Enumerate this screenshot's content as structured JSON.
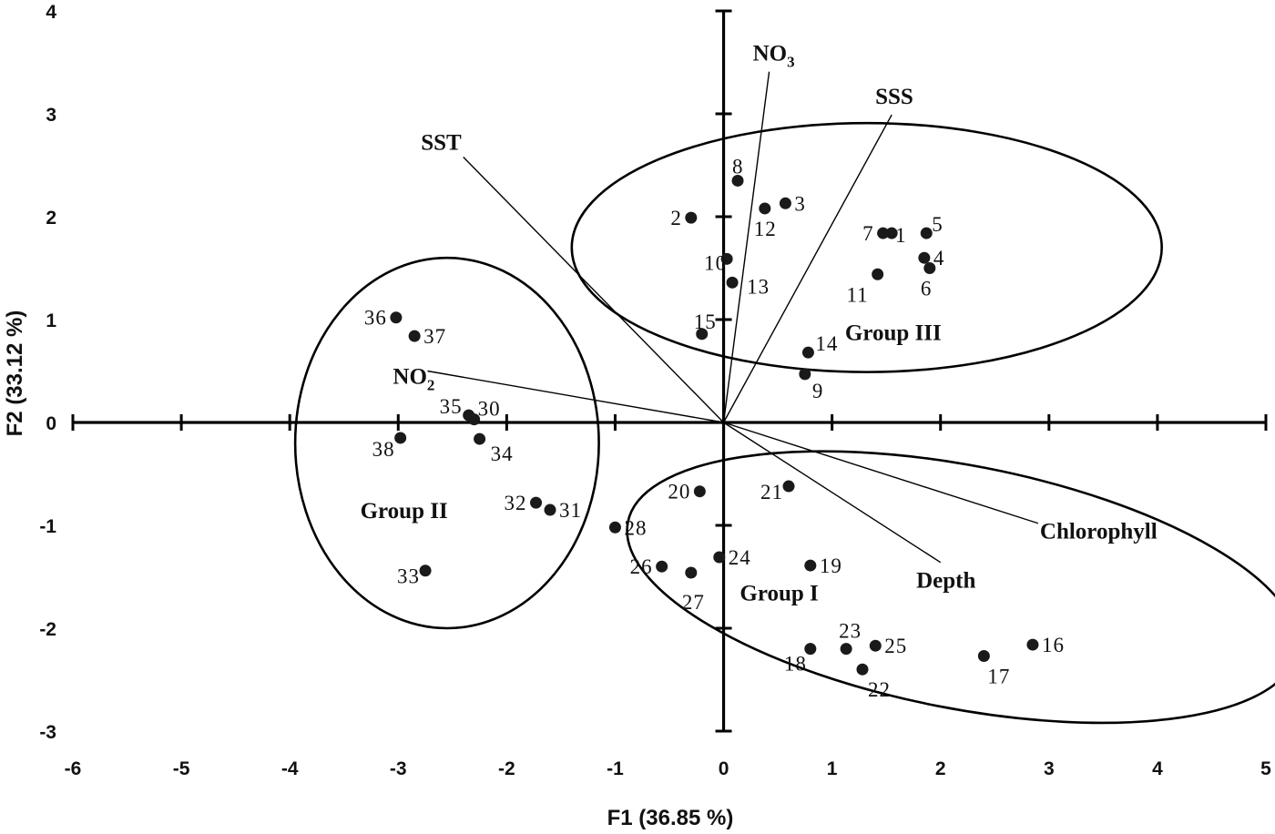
{
  "chart_data": {
    "type": "scatter",
    "title": "",
    "xlabel": "F1 (36.85 %)",
    "ylabel": "F2 (33.12 %)",
    "xlim": [
      -6,
      5
    ],
    "ylim": [
      -3,
      4
    ],
    "xticks": [
      -6,
      -5,
      -4,
      -3,
      -2,
      -1,
      0,
      1,
      2,
      3,
      4,
      5
    ],
    "yticks": [
      -3,
      -2,
      -1,
      0,
      1,
      2,
      3,
      4
    ],
    "grid": false,
    "points": [
      {
        "label": "1",
        "x": 1.55,
        "y": 1.84
      },
      {
        "label": "2",
        "x": -0.3,
        "y": 1.99
      },
      {
        "label": "3",
        "x": 0.57,
        "y": 2.13
      },
      {
        "label": "4",
        "x": 1.85,
        "y": 1.6
      },
      {
        "label": "5",
        "x": 1.87,
        "y": 1.84
      },
      {
        "label": "6",
        "x": 1.9,
        "y": 1.5
      },
      {
        "label": "7",
        "x": 1.47,
        "y": 1.84
      },
      {
        "label": "8",
        "x": 0.13,
        "y": 2.35
      },
      {
        "label": "9",
        "x": 0.75,
        "y": 0.47
      },
      {
        "label": "10",
        "x": 0.03,
        "y": 1.59
      },
      {
        "label": "11",
        "x": 1.42,
        "y": 1.44
      },
      {
        "label": "12",
        "x": 0.38,
        "y": 2.08
      },
      {
        "label": "13",
        "x": 0.08,
        "y": 1.36
      },
      {
        "label": "14",
        "x": 0.78,
        "y": 0.68
      },
      {
        "label": "15",
        "x": -0.2,
        "y": 0.86
      },
      {
        "label": "16",
        "x": 2.85,
        "y": -2.16
      },
      {
        "label": "17",
        "x": 2.4,
        "y": -2.27
      },
      {
        "label": "18",
        "x": 0.8,
        "y": -2.2
      },
      {
        "label": "19",
        "x": 0.8,
        "y": -1.39
      },
      {
        "label": "20",
        "x": -0.22,
        "y": -0.67
      },
      {
        "label": "21",
        "x": 0.6,
        "y": -0.62
      },
      {
        "label": "22",
        "x": 1.28,
        "y": -2.4
      },
      {
        "label": "23",
        "x": 1.13,
        "y": -2.2
      },
      {
        "label": "24",
        "x": -0.04,
        "y": -1.31
      },
      {
        "label": "25",
        "x": 1.4,
        "y": -2.17
      },
      {
        "label": "26",
        "x": -0.57,
        "y": -1.4
      },
      {
        "label": "27",
        "x": -0.3,
        "y": -1.46
      },
      {
        "label": "28",
        "x": -1.0,
        "y": -1.02
      },
      {
        "label": "30",
        "x": -2.3,
        "y": 0.03
      },
      {
        "label": "31",
        "x": -1.6,
        "y": -0.85
      },
      {
        "label": "32",
        "x": -1.73,
        "y": -0.78
      },
      {
        "label": "33",
        "x": -2.75,
        "y": -1.44
      },
      {
        "label": "34",
        "x": -2.25,
        "y": -0.16
      },
      {
        "label": "35",
        "x": -2.35,
        "y": 0.07
      },
      {
        "label": "36",
        "x": -3.02,
        "y": 1.02
      },
      {
        "label": "37",
        "x": -2.85,
        "y": 0.84
      },
      {
        "label": "38",
        "x": -2.98,
        "y": -0.15
      }
    ],
    "variables": [
      {
        "name": "NO",
        "sub": "3",
        "x": 0.42,
        "y": 3.41
      },
      {
        "name": "SSS",
        "x": 1.55,
        "y": 2.99
      },
      {
        "name": "SST",
        "x": -2.4,
        "y": 2.58
      },
      {
        "name": "NO",
        "sub": "2",
        "x": -2.73,
        "y": 0.5
      },
      {
        "name": "Chlorophyll",
        "x": 2.9,
        "y": -0.98
      },
      {
        "name": "Depth",
        "x": 2.0,
        "y": -1.36
      }
    ],
    "groups": [
      {
        "name": "Group I",
        "cx": 2.2,
        "cy": -1.6,
        "rx": 3.14,
        "ry": 1.18,
        "angle_deg": 11,
        "label_x": 0.15,
        "label_y": -1.73
      },
      {
        "name": "Group II",
        "cx": -2.55,
        "cy": -0.2,
        "rx": 1.4,
        "ry": 1.8,
        "angle_deg": 0,
        "label_x": -3.35,
        "label_y": -0.93
      },
      {
        "name": "Group III",
        "cx": 1.32,
        "cy": 1.7,
        "rx": 2.72,
        "ry": 1.21,
        "angle_deg": 0,
        "label_x": 1.12,
        "label_y": 0.8
      }
    ]
  }
}
